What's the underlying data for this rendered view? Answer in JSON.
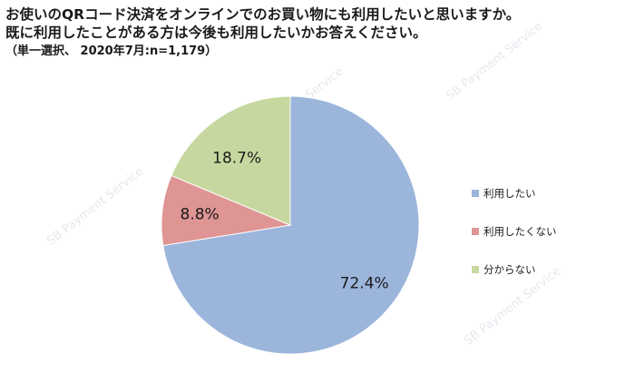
{
  "header": {
    "title_line1": "お使いのQRコード決済をオンラインでのお買い物にも利用したいと思いますか。",
    "title_line2": "既に利用したことがある方は今後も利用したいかお答えください。",
    "subtitle": "（単一選択、 2020年7月:n=1,179）"
  },
  "watermark": {
    "text": "SB Payment Service"
  },
  "chart_data": {
    "type": "pie",
    "title": "お使いのQRコード決済をオンラインでのお買い物にも利用したいと思いますか。既に利用したことがある方は今後も利用したいかお答えください。",
    "subtitle": "（単一選択、 2020年7月:n=1,179）",
    "slices": [
      {
        "label": "利用したい",
        "value": 72.4,
        "display": "72.4%",
        "color": "#9BB5DB"
      },
      {
        "label": "利用したくない",
        "value": 8.8,
        "display": "8.8%",
        "color": "#DE9593"
      },
      {
        "label": "分からない",
        "value": 18.7,
        "display": "18.7%",
        "color": "#C6D89F"
      }
    ],
    "legend_position": "right",
    "start_angle": "12 o'clock",
    "direction": "clockwise"
  }
}
